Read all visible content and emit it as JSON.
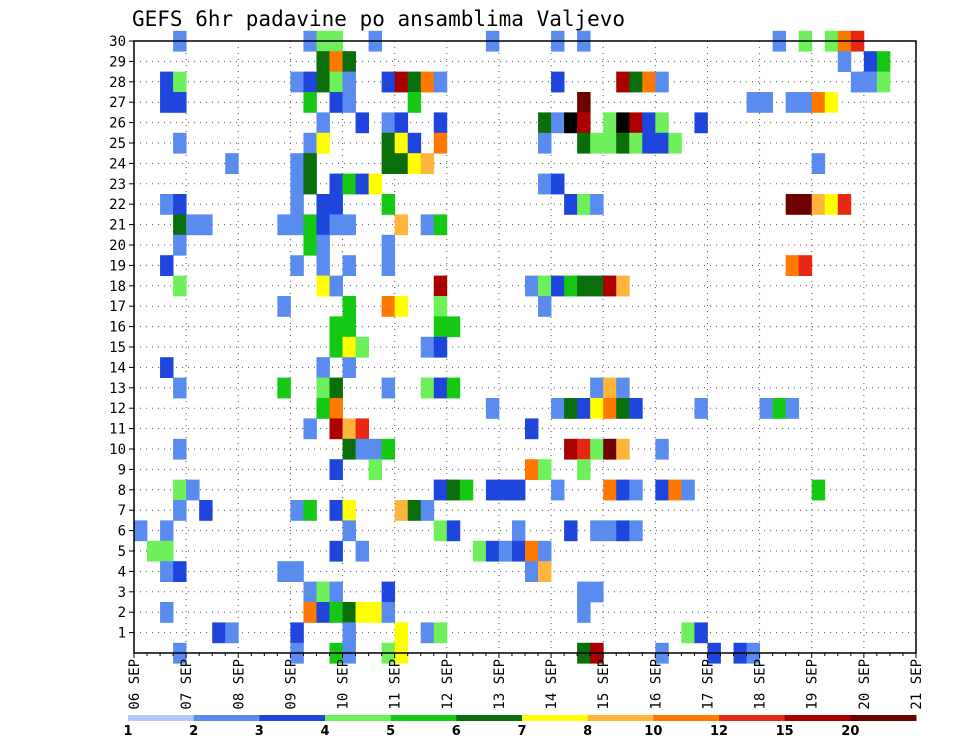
{
  "chart_data": {
    "type": "heatmap",
    "title": "GEFS 6hr padavine po ansamblima Valjevo",
    "xlabel": "",
    "ylabel": "",
    "x_ticks": [
      "06 SEP",
      "07 SEP",
      "08 SEP",
      "09 SEP",
      "10 SEP",
      "11 SEP",
      "12 SEP",
      "13 SEP",
      "14 SEP",
      "15 SEP",
      "16 SEP",
      "17 SEP",
      "18 SEP",
      "19 SEP",
      "20 SEP",
      "21 SEP"
    ],
    "x_unit": "6-hour step from 06 SEP 00Z",
    "x_range": [
      0,
      60
    ],
    "y_ticks": [
      "1",
      "2",
      "3",
      "4",
      "5",
      "6",
      "7",
      "8",
      "9",
      "10",
      "11",
      "12",
      "13",
      "14",
      "15",
      "16",
      "17",
      "18",
      "19",
      "20",
      "21",
      "22",
      "23",
      "24",
      "25",
      "26",
      "27",
      "28",
      "29",
      "30"
    ],
    "y_range": [
      0,
      30
    ],
    "grid": true,
    "legend_position": "bottom",
    "colorbar": {
      "labels": [
        "1",
        "2",
        "3",
        "4",
        "5",
        "6",
        "7",
        "8",
        "10",
        "12",
        "15",
        "20"
      ],
      "colors": [
        "#b4c8fa",
        "#5a8cf0",
        "#1e46dc",
        "#6ef05a",
        "#14c814",
        "#0a6e0a",
        "#ffff00",
        "#ffb43c",
        "#ff7800",
        "#e62814",
        "#aa0000",
        "#6e0000"
      ]
    },
    "cells": [
      [
        3,
        30,
        1
      ],
      [
        13,
        30,
        1
      ],
      [
        14,
        30,
        3
      ],
      [
        15,
        30,
        3
      ],
      [
        18,
        30,
        1
      ],
      [
        27,
        30,
        1
      ],
      [
        32,
        30,
        1
      ],
      [
        34,
        30,
        1
      ],
      [
        49,
        30,
        1
      ],
      [
        51,
        30,
        3
      ],
      [
        53,
        30,
        3
      ],
      [
        54,
        30,
        8
      ],
      [
        55,
        30,
        9
      ],
      [
        14,
        29,
        5
      ],
      [
        15,
        29,
        8
      ],
      [
        16,
        29,
        5
      ],
      [
        54,
        29,
        1
      ],
      [
        56,
        29,
        2
      ],
      [
        57,
        29,
        4
      ],
      [
        2,
        28,
        2
      ],
      [
        3,
        28,
        3
      ],
      [
        12,
        28,
        1
      ],
      [
        13,
        28,
        2
      ],
      [
        14,
        28,
        5
      ],
      [
        15,
        28,
        3
      ],
      [
        16,
        28,
        1
      ],
      [
        19,
        28,
        2
      ],
      [
        20,
        28,
        10
      ],
      [
        21,
        28,
        5
      ],
      [
        22,
        28,
        8
      ],
      [
        23,
        28,
        1
      ],
      [
        32,
        28,
        2
      ],
      [
        37,
        28,
        10
      ],
      [
        38,
        28,
        5
      ],
      [
        39,
        28,
        8
      ],
      [
        40,
        28,
        1
      ],
      [
        55,
        28,
        1
      ],
      [
        56,
        28,
        1
      ],
      [
        57,
        28,
        3
      ],
      [
        2,
        27,
        2
      ],
      [
        3,
        27,
        2
      ],
      [
        13,
        27,
        4
      ],
      [
        15,
        27,
        2
      ],
      [
        16,
        27,
        1
      ],
      [
        21,
        27,
        4
      ],
      [
        34,
        27,
        11
      ],
      [
        47,
        27,
        1
      ],
      [
        48,
        27,
        1
      ],
      [
        50,
        27,
        1
      ],
      [
        51,
        27,
        1
      ],
      [
        52,
        27,
        8
      ],
      [
        53,
        27,
        6
      ],
      [
        14,
        26,
        1
      ],
      [
        17,
        26,
        2
      ],
      [
        19,
        26,
        1
      ],
      [
        20,
        26,
        2
      ],
      [
        23,
        26,
        2
      ],
      [
        31,
        26,
        5
      ],
      [
        32,
        26,
        1
      ],
      [
        33,
        26,
        12
      ],
      [
        34,
        26,
        10
      ],
      [
        36,
        26,
        3
      ],
      [
        37,
        26,
        12
      ],
      [
        38,
        26,
        10
      ],
      [
        39,
        26,
        2
      ],
      [
        40,
        26,
        3
      ],
      [
        43,
        26,
        2
      ],
      [
        3,
        25,
        1
      ],
      [
        13,
        25,
        1
      ],
      [
        14,
        25,
        6
      ],
      [
        19,
        25,
        5
      ],
      [
        20,
        25,
        6
      ],
      [
        21,
        25,
        2
      ],
      [
        23,
        25,
        8
      ],
      [
        31,
        25,
        1
      ],
      [
        34,
        25,
        5
      ],
      [
        35,
        25,
        3
      ],
      [
        36,
        25,
        3
      ],
      [
        37,
        25,
        5
      ],
      [
        38,
        25,
        3
      ],
      [
        39,
        25,
        2
      ],
      [
        40,
        25,
        2
      ],
      [
        41,
        25,
        3
      ],
      [
        7,
        24,
        1
      ],
      [
        12,
        24,
        1
      ],
      [
        13,
        24,
        5
      ],
      [
        19,
        24,
        5
      ],
      [
        20,
        24,
        5
      ],
      [
        21,
        24,
        6
      ],
      [
        22,
        24,
        7
      ],
      [
        52,
        24,
        1
      ],
      [
        12,
        23,
        1
      ],
      [
        13,
        23,
        5
      ],
      [
        15,
        23,
        2
      ],
      [
        16,
        23,
        4
      ],
      [
        17,
        23,
        2
      ],
      [
        18,
        23,
        6
      ],
      [
        31,
        23,
        1
      ],
      [
        32,
        23,
        2
      ],
      [
        2,
        22,
        1
      ],
      [
        3,
        22,
        2
      ],
      [
        12,
        22,
        1
      ],
      [
        14,
        22,
        2
      ],
      [
        15,
        22,
        2
      ],
      [
        19,
        22,
        4
      ],
      [
        33,
        22,
        2
      ],
      [
        34,
        22,
        3
      ],
      [
        35,
        22,
        1
      ],
      [
        50,
        22,
        11
      ],
      [
        51,
        22,
        11
      ],
      [
        52,
        22,
        7
      ],
      [
        53,
        22,
        6
      ],
      [
        54,
        22,
        9
      ],
      [
        3,
        21,
        5
      ],
      [
        4,
        21,
        1
      ],
      [
        5,
        21,
        1
      ],
      [
        11,
        21,
        1
      ],
      [
        12,
        21,
        1
      ],
      [
        13,
        21,
        4
      ],
      [
        14,
        21,
        2
      ],
      [
        15,
        21,
        1
      ],
      [
        16,
        21,
        1
      ],
      [
        20,
        21,
        7
      ],
      [
        22,
        21,
        1
      ],
      [
        23,
        21,
        4
      ],
      [
        3,
        20,
        1
      ],
      [
        13,
        20,
        4
      ],
      [
        14,
        20,
        1
      ],
      [
        19,
        20,
        1
      ],
      [
        2,
        19,
        2
      ],
      [
        12,
        19,
        1
      ],
      [
        14,
        19,
        1
      ],
      [
        16,
        19,
        1
      ],
      [
        19,
        19,
        1
      ],
      [
        50,
        19,
        8
      ],
      [
        51,
        19,
        9
      ],
      [
        3,
        18,
        3
      ],
      [
        14,
        18,
        6
      ],
      [
        15,
        18,
        1
      ],
      [
        23,
        18,
        10
      ],
      [
        30,
        18,
        1
      ],
      [
        31,
        18,
        3
      ],
      [
        32,
        18,
        2
      ],
      [
        33,
        18,
        4
      ],
      [
        34,
        18,
        5
      ],
      [
        35,
        18,
        5
      ],
      [
        36,
        18,
        10
      ],
      [
        37,
        18,
        7
      ],
      [
        11,
        17,
        1
      ],
      [
        16,
        17,
        4
      ],
      [
        19,
        17,
        8
      ],
      [
        20,
        17,
        6
      ],
      [
        23,
        17,
        3
      ],
      [
        31,
        17,
        1
      ],
      [
        15,
        16,
        4
      ],
      [
        16,
        16,
        4
      ],
      [
        23,
        16,
        4
      ],
      [
        24,
        16,
        4
      ],
      [
        15,
        15,
        4
      ],
      [
        16,
        15,
        6
      ],
      [
        17,
        15,
        3
      ],
      [
        22,
        15,
        1
      ],
      [
        23,
        15,
        2
      ],
      [
        2,
        14,
        2
      ],
      [
        14,
        14,
        1
      ],
      [
        16,
        14,
        1
      ],
      [
        3,
        13,
        1
      ],
      [
        11,
        13,
        4
      ],
      [
        14,
        13,
        3
      ],
      [
        15,
        13,
        5
      ],
      [
        19,
        13,
        1
      ],
      [
        22,
        13,
        3
      ],
      [
        23,
        13,
        2
      ],
      [
        24,
        13,
        4
      ],
      [
        35,
        13,
        1
      ],
      [
        36,
        13,
        7
      ],
      [
        37,
        13,
        1
      ],
      [
        14,
        12,
        4
      ],
      [
        15,
        12,
        8
      ],
      [
        27,
        12,
        1
      ],
      [
        32,
        12,
        1
      ],
      [
        33,
        12,
        5
      ],
      [
        34,
        12,
        2
      ],
      [
        35,
        12,
        6
      ],
      [
        36,
        12,
        8
      ],
      [
        37,
        12,
        5
      ],
      [
        38,
        12,
        2
      ],
      [
        43,
        12,
        1
      ],
      [
        48,
        12,
        1
      ],
      [
        49,
        12,
        4
      ],
      [
        50,
        12,
        1
      ],
      [
        13,
        11,
        1
      ],
      [
        15,
        11,
        10
      ],
      [
        16,
        11,
        7
      ],
      [
        17,
        11,
        9
      ],
      [
        30,
        11,
        2
      ],
      [
        3,
        10,
        1
      ],
      [
        16,
        10,
        5
      ],
      [
        17,
        10,
        1
      ],
      [
        18,
        10,
        1
      ],
      [
        19,
        10,
        4
      ],
      [
        33,
        10,
        10
      ],
      [
        34,
        10,
        9
      ],
      [
        35,
        10,
        3
      ],
      [
        36,
        10,
        11
      ],
      [
        37,
        10,
        7
      ],
      [
        40,
        10,
        1
      ],
      [
        15,
        9,
        2
      ],
      [
        18,
        9,
        3
      ],
      [
        30,
        9,
        8
      ],
      [
        31,
        9,
        3
      ],
      [
        34,
        9,
        3
      ],
      [
        3,
        8,
        3
      ],
      [
        4,
        8,
        1
      ],
      [
        23,
        8,
        2
      ],
      [
        24,
        8,
        5
      ],
      [
        25,
        8,
        4
      ],
      [
        27,
        8,
        2
      ],
      [
        28,
        8,
        2
      ],
      [
        29,
        8,
        2
      ],
      [
        32,
        8,
        1
      ],
      [
        36,
        8,
        8
      ],
      [
        37,
        8,
        2
      ],
      [
        38,
        8,
        1
      ],
      [
        40,
        8,
        2
      ],
      [
        41,
        8,
        8
      ],
      [
        42,
        8,
        1
      ],
      [
        52,
        8,
        4
      ],
      [
        3,
        7,
        1
      ],
      [
        5,
        7,
        2
      ],
      [
        12,
        7,
        1
      ],
      [
        13,
        7,
        4
      ],
      [
        15,
        7,
        2
      ],
      [
        16,
        7,
        6
      ],
      [
        20,
        7,
        7
      ],
      [
        21,
        7,
        5
      ],
      [
        22,
        7,
        1
      ],
      [
        0,
        6,
        1
      ],
      [
        2,
        6,
        1
      ],
      [
        16,
        6,
        1
      ],
      [
        23,
        6,
        3
      ],
      [
        24,
        6,
        2
      ],
      [
        29,
        6,
        1
      ],
      [
        33,
        6,
        2
      ],
      [
        35,
        6,
        1
      ],
      [
        36,
        6,
        1
      ],
      [
        37,
        6,
        2
      ],
      [
        38,
        6,
        1
      ],
      [
        1,
        5,
        3
      ],
      [
        2,
        5,
        3
      ],
      [
        15,
        5,
        2
      ],
      [
        17,
        5,
        1
      ],
      [
        26,
        5,
        3
      ],
      [
        27,
        5,
        2
      ],
      [
        28,
        5,
        1
      ],
      [
        29,
        5,
        2
      ],
      [
        30,
        5,
        8
      ],
      [
        31,
        5,
        1
      ],
      [
        2,
        4,
        1
      ],
      [
        3,
        4,
        2
      ],
      [
        11,
        4,
        1
      ],
      [
        12,
        4,
        1
      ],
      [
        30,
        4,
        1
      ],
      [
        31,
        4,
        7
      ],
      [
        13,
        3,
        1
      ],
      [
        14,
        3,
        3
      ],
      [
        15,
        3,
        1
      ],
      [
        19,
        3,
        2
      ],
      [
        34,
        3,
        1
      ],
      [
        35,
        3,
        1
      ],
      [
        2,
        2,
        1
      ],
      [
        13,
        2,
        8
      ],
      [
        14,
        2,
        2
      ],
      [
        15,
        2,
        4
      ],
      [
        16,
        2,
        5
      ],
      [
        17,
        2,
        6
      ],
      [
        18,
        2,
        6
      ],
      [
        19,
        2,
        1
      ],
      [
        34,
        2,
        1
      ],
      [
        6,
        1,
        2
      ],
      [
        7,
        1,
        1
      ],
      [
        12,
        1,
        2
      ],
      [
        16,
        1,
        1
      ],
      [
        20,
        1,
        6
      ],
      [
        22,
        1,
        1
      ],
      [
        23,
        1,
        3
      ],
      [
        42,
        1,
        3
      ],
      [
        43,
        1,
        2
      ],
      [
        3,
        0,
        1
      ],
      [
        12,
        0,
        1
      ],
      [
        15,
        0,
        4
      ],
      [
        16,
        0,
        1
      ],
      [
        19,
        0,
        3
      ],
      [
        20,
        0,
        6
      ],
      [
        34,
        0,
        5
      ],
      [
        35,
        0,
        10
      ],
      [
        40,
        0,
        1
      ],
      [
        44,
        0,
        2
      ],
      [
        46,
        0,
        2
      ],
      [
        47,
        0,
        1
      ]
    ]
  }
}
